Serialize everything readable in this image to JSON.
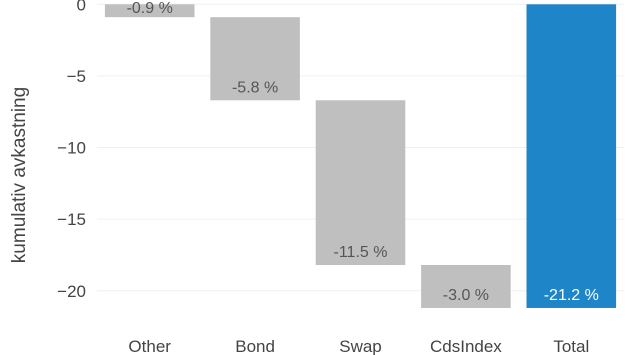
{
  "chart_data": {
    "type": "bar",
    "subtype": "waterfall",
    "title": "",
    "xlabel": "",
    "ylabel": "kumulativ avkastning",
    "ylim": [
      -21.9,
      0.3
    ],
    "yticks": [
      0,
      -5,
      -10,
      -15,
      -20
    ],
    "ytick_labels": [
      "0",
      "−5",
      "−10",
      "−15",
      "−20"
    ],
    "grid": true,
    "categories": [
      "Other",
      "Bond",
      "Swap",
      "CdsIndex",
      "Total"
    ],
    "values": [
      -0.9,
      -5.8,
      -11.5,
      -3.0,
      -21.2
    ],
    "labels": [
      "-0.9 %",
      "-5.8 %",
      "-11.5 %",
      "-3.0 %",
      "-21.2 %"
    ],
    "is_total": [
      false,
      false,
      false,
      false,
      true
    ],
    "colors": {
      "step": "#bfbfbf",
      "total": "#1f85c9",
      "step_label": "#555555",
      "total_label": "#ffffff",
      "tick_text": "#444444"
    }
  }
}
